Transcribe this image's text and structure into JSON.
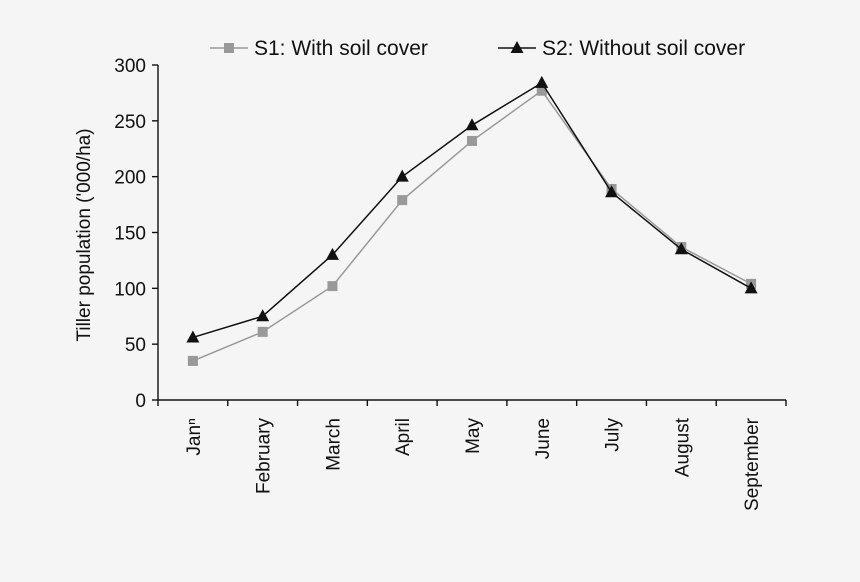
{
  "chart_data": {
    "type": "line",
    "title": "",
    "xlabel": "",
    "ylabel": "Tiller population ('000/ha)",
    "ylim": [
      0,
      300
    ],
    "yticks": [
      0,
      50,
      100,
      150,
      200,
      250,
      300
    ],
    "categories": [
      "Janⁿ",
      "February",
      "March",
      "April",
      "May",
      "June",
      "July",
      "August",
      "September"
    ],
    "series": [
      {
        "name": "S1: With soil cover",
        "marker": "square",
        "color": "#999999",
        "values": [
          35,
          61,
          102,
          179,
          232,
          277,
          189,
          137,
          104
        ]
      },
      {
        "name": "S2: Without soil cover",
        "marker": "triangle",
        "color": "#111111",
        "values": [
          56,
          75,
          130,
          200,
          246,
          284,
          186,
          135,
          100
        ]
      }
    ],
    "legend_position": "top"
  }
}
